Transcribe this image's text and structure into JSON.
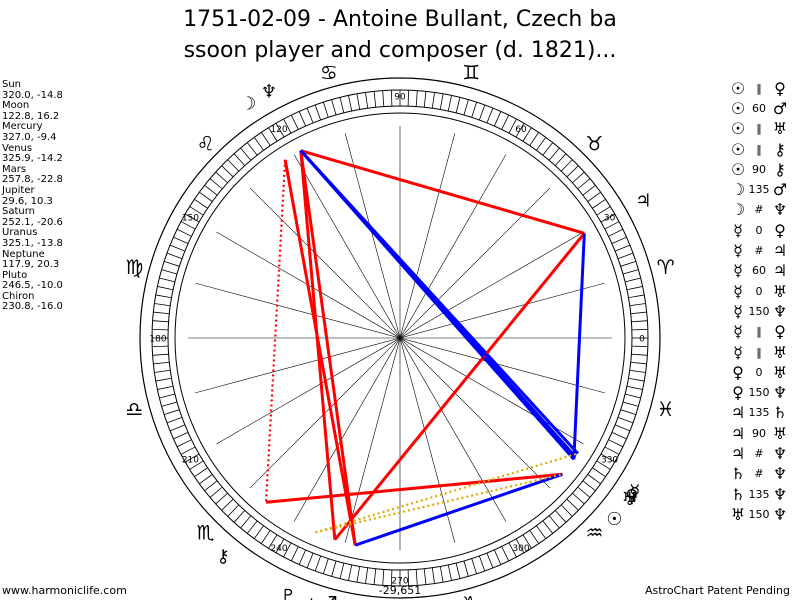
{
  "title": {
    "line1": "1751-02-09 - Antoine Bullant, Czech ba",
    "line2": "ssoon player and composer (d. 1821)..."
  },
  "planets": [
    {
      "name": "Sun",
      "coords": "320.0, -14.8"
    },
    {
      "name": "Moon",
      "coords": "122.8, 16.2"
    },
    {
      "name": "Mercury",
      "coords": "327.0, -9.4"
    },
    {
      "name": "Venus",
      "coords": "325.9, -14.2"
    },
    {
      "name": "Mars",
      "coords": "257.8, -22.8"
    },
    {
      "name": "Jupiter",
      "coords": "29.6, 10.3"
    },
    {
      "name": "Saturn",
      "coords": "252.1, -20.6"
    },
    {
      "name": "Uranus",
      "coords": "325.1, -13.8"
    },
    {
      "name": "Neptune",
      "coords": "117.9, 20.3"
    },
    {
      "name": "Pluto",
      "coords": "246.5, -10.0"
    },
    {
      "name": "Chiron",
      "coords": "230.8, -16.0"
    }
  ],
  "aspects": [
    {
      "p1": "☉",
      "asp": "‖",
      "p2": "♀"
    },
    {
      "p1": "☉",
      "asp": "60",
      "p2": "♂"
    },
    {
      "p1": "☉",
      "asp": "‖",
      "p2": "♅"
    },
    {
      "p1": "☉",
      "asp": "‖",
      "p2": "⚷"
    },
    {
      "p1": "☉",
      "asp": "90",
      "p2": "⚷"
    },
    {
      "p1": "☽",
      "asp": "135",
      "p2": "♂"
    },
    {
      "p1": "☽",
      "asp": "#",
      "p2": "♆"
    },
    {
      "p1": "☿",
      "asp": "0",
      "p2": "♀"
    },
    {
      "p1": "☿",
      "asp": "#",
      "p2": "♃"
    },
    {
      "p1": "☿",
      "asp": "60",
      "p2": "♃"
    },
    {
      "p1": "☿",
      "asp": "0",
      "p2": "♅"
    },
    {
      "p1": "☿",
      "asp": "150",
      "p2": "♆"
    },
    {
      "p1": "☿",
      "asp": "‖",
      "p2": "♀"
    },
    {
      "p1": "☿",
      "asp": "‖",
      "p2": "♅"
    },
    {
      "p1": "♀",
      "asp": "0",
      "p2": "♅"
    },
    {
      "p1": "♀",
      "asp": "150",
      "p2": "♆"
    },
    {
      "p1": "♃",
      "asp": "135",
      "p2": "♄"
    },
    {
      "p1": "♃",
      "asp": "90",
      "p2": "♅"
    },
    {
      "p1": "♃",
      "asp": "#",
      "p2": "♆"
    },
    {
      "p1": "♄",
      "asp": "#",
      "p2": "♆"
    },
    {
      "p1": "♄",
      "asp": "135",
      "p2": "♆"
    },
    {
      "p1": "♅",
      "asp": "150",
      "p2": "♆"
    }
  ],
  "degree_labels": [
    "0",
    "30",
    "60",
    "90",
    "120",
    "150",
    "180",
    "210",
    "240",
    "270",
    "300",
    "330"
  ],
  "zodiac": [
    {
      "sign": "aries",
      "glyph": "♈",
      "lon": 15
    },
    {
      "sign": "taurus",
      "glyph": "♉",
      "lon": 45
    },
    {
      "sign": "gemini",
      "glyph": "♊",
      "lon": 75
    },
    {
      "sign": "cancer",
      "glyph": "♋",
      "lon": 105
    },
    {
      "sign": "leo",
      "glyph": "♌",
      "lon": 135
    },
    {
      "sign": "virgo",
      "glyph": "♍",
      "lon": 165
    },
    {
      "sign": "libra",
      "glyph": "♎",
      "lon": 195
    },
    {
      "sign": "scorpio",
      "glyph": "♏",
      "lon": 225
    },
    {
      "sign": "sagittarius",
      "glyph": "♐",
      "lon": 255
    },
    {
      "sign": "capricorn",
      "glyph": "♑",
      "lon": 285
    },
    {
      "sign": "aquarius",
      "glyph": "♒",
      "lon": 315
    },
    {
      "sign": "pisces",
      "glyph": "♓",
      "lon": 345
    }
  ],
  "chart_planets": [
    {
      "id": "sun",
      "glyph": "☉",
      "lon": 320.0
    },
    {
      "id": "moon",
      "glyph": "☽",
      "lon": 122.8
    },
    {
      "id": "mercury",
      "glyph": "☿",
      "lon": 327.0
    },
    {
      "id": "venus",
      "glyph": "♀",
      "lon": 325.9
    },
    {
      "id": "mars",
      "glyph": "♂",
      "lon": 257.8
    },
    {
      "id": "jupiter",
      "glyph": "♃",
      "lon": 29.6
    },
    {
      "id": "saturn",
      "glyph": "♄",
      "lon": 252.1
    },
    {
      "id": "uranus",
      "glyph": "♅",
      "lon": 325.1
    },
    {
      "id": "neptune",
      "glyph": "♆",
      "lon": 117.9
    },
    {
      "id": "pluto",
      "glyph": "♇",
      "lon": 246.5
    },
    {
      "id": "chiron",
      "glyph": "⚷",
      "lon": 230.8
    }
  ],
  "aspect_lines": [
    {
      "a": 257.8,
      "b": 122.8,
      "color": "#ff0000",
      "style": "solid"
    },
    {
      "a": 257.8,
      "b": 117.9,
      "color": "#ff0000",
      "style": "solid"
    },
    {
      "a": 252.1,
      "b": 117.9,
      "color": "#ff0000",
      "style": "solid"
    },
    {
      "a": 252.1,
      "b": 29.6,
      "color": "#ff0000",
      "style": "solid"
    },
    {
      "a": 29.6,
      "b": 117.9,
      "color": "#ff0000",
      "style": "solid"
    },
    {
      "a": 230.8,
      "b": 320.0,
      "color": "#ff0000",
      "style": "solid"
    },
    {
      "a": 117.9,
      "b": 325.9,
      "color": "#0000ff",
      "style": "solid"
    },
    {
      "a": 117.9,
      "b": 327.0,
      "color": "#0000ff",
      "style": "solid"
    },
    {
      "a": 117.9,
      "b": 325.1,
      "color": "#0000ff",
      "style": "solid"
    },
    {
      "a": 29.6,
      "b": 325.1,
      "color": "#0000ff",
      "style": "solid"
    },
    {
      "a": 257.8,
      "b": 320.0,
      "color": "#0000ff",
      "style": "solid"
    },
    {
      "a": 122.8,
      "b": 230.8,
      "color": "#ff0000",
      "style": "dotted"
    },
    {
      "a": 252.1,
      "b": 29.6,
      "color": "#ff0000",
      "style": "dotted"
    },
    {
      "a": 246.5,
      "b": 327.0,
      "color": "#ddaa00",
      "style": "dotted"
    },
    {
      "a": 246.5,
      "b": 320.0,
      "color": "#ddaa00",
      "style": "dotted"
    }
  ],
  "footer": {
    "left": "www.harmoniclife.com",
    "center": "-29,651",
    "right": "AstroChart Patent Pending"
  }
}
